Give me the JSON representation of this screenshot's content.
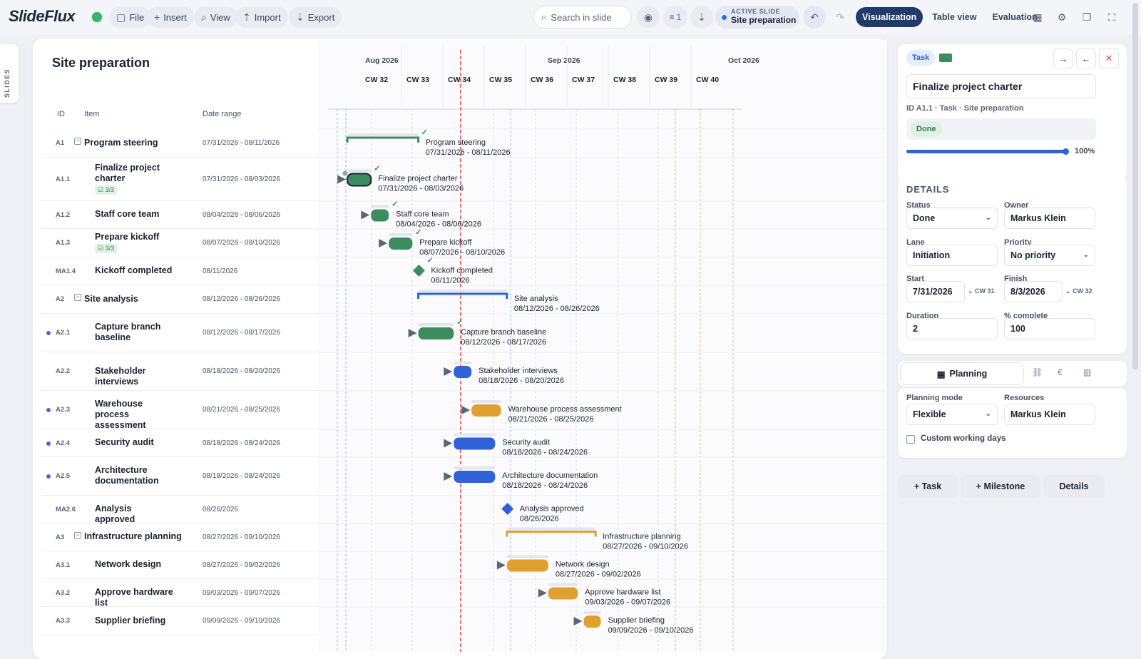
{
  "app": {
    "logo": "SlideFlux"
  },
  "toolbar": {
    "file": "File",
    "insert": "Insert",
    "view": "View",
    "import": "Import",
    "export": "Export",
    "search_placeholder": "Search in slide",
    "notifications_count": "1",
    "active_slide_label": "ACTIVE SLIDE",
    "active_slide_value": "Site preparation",
    "tabs": [
      "Visualization",
      "Table view",
      "Evaluation"
    ],
    "active_tab": "Visualization"
  },
  "sidebar": {
    "slides_label": "SLIDES"
  },
  "slide": {
    "title": "Site preparation",
    "columns": {
      "id": "ID",
      "item": "Item",
      "date_range": "Date range"
    },
    "months": [
      "Aug 2026",
      "Sep 2026",
      "Oct 2026"
    ],
    "weeks": [
      "CW 32",
      "CW 33",
      "CW 34",
      "CW 35",
      "CW 36",
      "CW 37",
      "CW 38",
      "CW 39",
      "CW 40"
    ],
    "rows": [
      {
        "id": "A1",
        "name": "Program steering",
        "dates": "07/31/2026 - 08/11/2026",
        "bar_label": "Program steering",
        "bar_dates": "07/31/2026 - 08/11/2026"
      },
      {
        "id": "A1.1",
        "name": "Finalize project charter",
        "dates": "07/31/2026 - 08/03/2026",
        "checklist": "3/3",
        "bar_label": "Finalize project charter",
        "bar_dates": "07/31/2026 - 08/03/2026"
      },
      {
        "id": "A1.2",
        "name": "Staff core team",
        "dates": "08/04/2026 - 08/06/2026",
        "bar_label": "Staff core team",
        "bar_dates": "08/04/2026 - 08/06/2026"
      },
      {
        "id": "A1.3",
        "name": "Prepare kickoff",
        "dates": "08/07/2026 - 08/10/2026",
        "checklist": "3/3",
        "bar_label": "Prepare kickoff",
        "bar_dates": "08/07/2026 - 08/10/2026"
      },
      {
        "id": "MA1.4",
        "name": "Kickoff completed",
        "dates": "08/11/2026",
        "bar_label": "Kickoff completed",
        "bar_dates": "08/11/2026"
      },
      {
        "id": "A2",
        "name": "Site analysis",
        "dates": "08/12/2026 - 08/26/2026",
        "bar_label": "Site analysis",
        "bar_dates": "08/12/2026 - 08/26/2026"
      },
      {
        "id": "A2.1",
        "name": "Capture branch baseline",
        "dates": "08/12/2026 - 08/17/2026",
        "bar_label": "Capture branch baseline",
        "bar_dates": "08/12/2026 - 08/17/2026"
      },
      {
        "id": "A2.2",
        "name": "Stakeholder interviews",
        "dates": "08/18/2026 - 08/20/2026",
        "bar_label": "Stakeholder interviews",
        "bar_dates": "08/18/2026 - 08/20/2026"
      },
      {
        "id": "A2.3",
        "name": "Warehouse process assessment",
        "dates": "08/21/2026 - 08/25/2026",
        "bar_label": "Warehouse process assessment",
        "bar_dates": "08/21/2026 - 08/25/2026"
      },
      {
        "id": "A2.4",
        "name": "Security audit",
        "dates": "08/18/2026 - 08/24/2026",
        "bar_label": "Security audit",
        "bar_dates": "08/18/2026 - 08/24/2026"
      },
      {
        "id": "A2.5",
        "name": "Architecture documentation",
        "dates": "08/18/2026 - 08/24/2026",
        "bar_label": "Architecture documentation",
        "bar_dates": "08/18/2026 - 08/24/2026"
      },
      {
        "id": "MA2.6",
        "name": "Analysis approved",
        "dates": "08/26/2026",
        "bar_label": "Analysis approved",
        "bar_dates": "08/26/2026"
      },
      {
        "id": "A3",
        "name": "Infrastructure planning",
        "dates": "08/27/2026 - 09/10/2026",
        "bar_label": "Infrastructure planning",
        "bar_dates": "08/27/2026 - 09/10/2026"
      },
      {
        "id": "A3.1",
        "name": "Network design",
        "dates": "08/27/2026 - 09/02/2026",
        "bar_label": "Network design",
        "bar_dates": "08/27/2026 - 09/02/2026"
      },
      {
        "id": "A3.2",
        "name": "Approve hardware list",
        "dates": "09/03/2026 - 09/07/2026",
        "bar_label": "Approve hardware list",
        "bar_dates": "09/03/2026 - 09/07/2026"
      },
      {
        "id": "A3.3",
        "name": "Supplier briefing",
        "dates": "09/09/2026 - 09/10/2026",
        "bar_label": "Supplier briefing",
        "bar_dates": "09/09/2026 - 09/10/2026"
      }
    ],
    "colors": {
      "done": "#3d8c5e",
      "blue": "#2f62d8",
      "orange": "#e0a030",
      "today": "#d9473a"
    }
  },
  "panel": {
    "type_badge": "Task",
    "task_title": "Finalize project charter",
    "meta": "ID A1.1 · Task · Site preparation",
    "status_badge": "Done",
    "progress_percent": 100,
    "progress_label": "100%",
    "details_heading": "DETAILS",
    "status_label": "Status",
    "status_value": "Done",
    "owner_label": "Owner",
    "owner_value": "Markus Klein",
    "lane_label": "Lane",
    "lane_value": "Initiation",
    "priority_label": "Priority",
    "priority_value": "No priority",
    "start_label": "Start",
    "start_value": "7/31/2026",
    "start_cw": "CW 31",
    "finish_label": "Finish",
    "finish_value": "8/3/2026",
    "finish_cw": "CW 32",
    "duration_label": "Duration",
    "duration_value": "2",
    "complete_label": "% complete",
    "complete_value": "100",
    "planning_tab": "Planning",
    "planning_mode_label": "Planning mode",
    "planning_mode_value": "Flexible",
    "resources_label": "Resources",
    "resources_value": "Markus Klein",
    "custom_days_label": "Custom working days",
    "add_task": "+ Task",
    "add_milestone": "+ Milestone",
    "details_button": "Details"
  }
}
